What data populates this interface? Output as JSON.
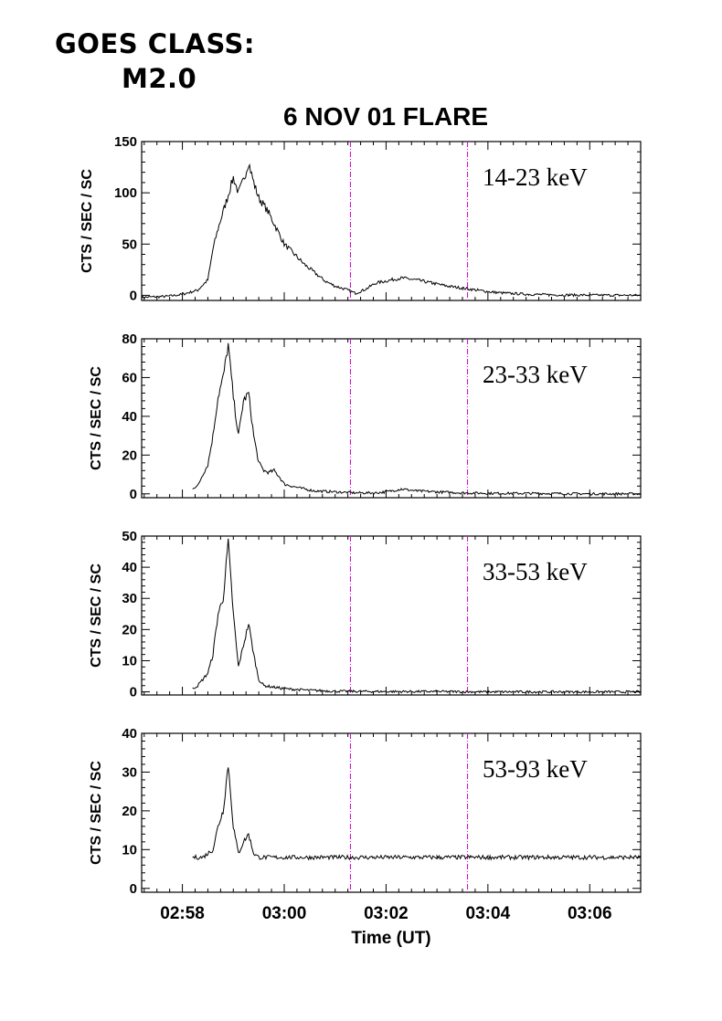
{
  "header": {
    "goes_line1": "GOES CLASS:",
    "goes_line2": "M2.0"
  },
  "chart_data": {
    "type": "line",
    "title": "6 NOV 01 FLARE",
    "xlabel": "Time (UT)",
    "x_unit": "minutes after 02:58 UT",
    "xlim": [
      -0.8,
      9.0
    ],
    "x_tick_values": [
      0,
      2,
      4,
      6,
      8
    ],
    "x_tick_labels": [
      "02:58",
      "03:00",
      "03:02",
      "03:04",
      "03:06"
    ],
    "marker_lines": [
      {
        "time": "03:01:18",
        "minutes": 3.3,
        "color": "#cc00cc",
        "style": "dash-dot"
      },
      {
        "time": "03:03:36",
        "minutes": 5.6,
        "color": "#cc00cc",
        "style": "dash-dot"
      }
    ],
    "panels": [
      {
        "label": "14-23 keV",
        "ylabel": "CTS / SEC / SC",
        "ylim": [
          -5,
          150
        ],
        "yticks": [
          0,
          50,
          100,
          150
        ],
        "series": {
          "x": [
            -0.8,
            -0.3,
            0.0,
            0.3,
            0.5,
            0.6,
            0.7,
            0.9,
            1.0,
            1.1,
            1.2,
            1.3,
            1.4,
            1.5,
            1.6,
            1.7,
            1.8,
            1.9,
            2.0,
            2.2,
            2.4,
            2.6,
            2.8,
            3.0,
            3.2,
            3.4,
            3.6,
            3.8,
            4.0,
            4.3,
            4.6,
            4.9,
            5.2,
            5.5,
            5.8,
            6.1,
            6.4,
            6.8,
            7.2,
            7.6,
            8.0,
            8.5,
            9.0
          ],
          "y": [
            -2,
            -1,
            1,
            5,
            15,
            45,
            65,
            98,
            115,
            100,
            112,
            130,
            110,
            95,
            88,
            80,
            70,
            60,
            50,
            40,
            30,
            22,
            14,
            9,
            6,
            2,
            6,
            12,
            14,
            17,
            15,
            12,
            9,
            7,
            5,
            3,
            2,
            1,
            0.5,
            0.3,
            0.2,
            0.1,
            0
          ]
        }
      },
      {
        "label": "23-33 keV",
        "ylabel": "CTS / SEC / SC",
        "ylim": [
          -2,
          80
        ],
        "yticks": [
          0,
          20,
          40,
          60,
          80
        ],
        "series": {
          "x": [
            0.2,
            0.3,
            0.4,
            0.5,
            0.6,
            0.7,
            0.8,
            0.9,
            1.0,
            1.1,
            1.2,
            1.3,
            1.4,
            1.5,
            1.6,
            1.7,
            1.8,
            1.9,
            2.0,
            2.3,
            2.6,
            3.0,
            3.4,
            3.8,
            4.0,
            4.3,
            4.6,
            5.0,
            5.5,
            6.0,
            7.0,
            8.0,
            9.0
          ],
          "y": [
            3,
            4,
            10,
            15,
            30,
            50,
            60,
            77,
            50,
            30,
            48,
            52,
            30,
            16,
            12,
            11,
            12,
            9,
            5,
            3,
            1.5,
            1,
            0.5,
            0.5,
            1,
            2.5,
            1.5,
            1,
            0.5,
            0.3,
            0.2,
            0,
            0
          ]
        }
      },
      {
        "label": "33-53 keV",
        "ylabel": "CTS / SEC / SC",
        "ylim": [
          -1,
          50
        ],
        "yticks": [
          0,
          10,
          20,
          30,
          40,
          50
        ],
        "series": {
          "x": [
            0.2,
            0.3,
            0.4,
            0.5,
            0.6,
            0.7,
            0.8,
            0.9,
            1.0,
            1.1,
            1.2,
            1.3,
            1.4,
            1.5,
            1.6,
            1.8,
            2.0,
            2.5,
            3.0,
            4.0,
            5.0,
            6.0,
            7.0,
            8.0,
            9.0
          ],
          "y": [
            1,
            2,
            4,
            6,
            12,
            25,
            30,
            48,
            25,
            8,
            15,
            22,
            12,
            4,
            2,
            1.5,
            1,
            0.5,
            0.2,
            0.1,
            0.1,
            0,
            0,
            0,
            0
          ]
        }
      },
      {
        "label": "53-93 keV",
        "ylabel": "CTS / SEC / SC",
        "ylim": [
          -1,
          40
        ],
        "yticks": [
          0,
          10,
          20,
          30,
          40
        ],
        "series": {
          "x": [
            0.2,
            0.4,
            0.6,
            0.7,
            0.8,
            0.9,
            1.0,
            1.1,
            1.2,
            1.3,
            1.4,
            1.5,
            1.6,
            2.0,
            3.0,
            4.0,
            5.0,
            6.0,
            7.0,
            8.0,
            9.0
          ],
          "y": [
            8,
            8,
            10,
            16,
            20,
            32,
            16,
            9,
            12,
            14,
            9,
            8,
            8,
            8,
            8,
            8,
            8,
            8,
            8,
            8,
            8
          ]
        }
      }
    ]
  }
}
